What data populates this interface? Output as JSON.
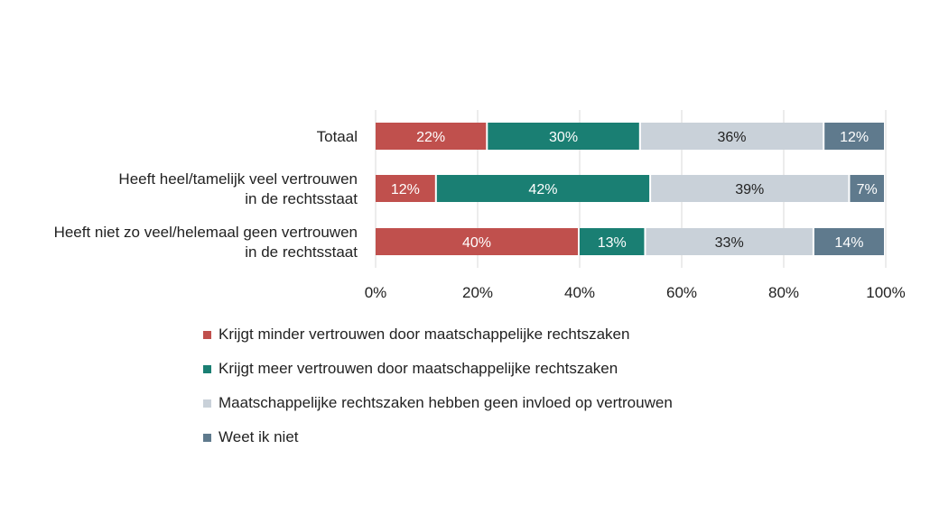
{
  "chart_data": {
    "type": "bar",
    "orientation": "horizontal",
    "stacked": true,
    "normalized": true,
    "categories": [
      [
        "Totaal"
      ],
      [
        "Heeft heel/tamelijk veel vertrouwen",
        "in de rechtsstaat"
      ],
      [
        "Heeft niet zo veel/helemaal geen vertrouwen",
        "in de rechtsstaat"
      ]
    ],
    "series": [
      {
        "name": "Krijgt minder vertrouwen door maatschappelijke rechtszaken",
        "color": "#c0504d",
        "label_color": "#ffffff",
        "values": [
          22,
          12,
          40
        ]
      },
      {
        "name": "Krijgt meer vertrouwen door maatschappelijke rechtszaken",
        "color": "#1a7f73",
        "label_color": "#ffffff",
        "values": [
          30,
          42,
          13
        ]
      },
      {
        "name": "Maatschappelijke rechtszaken hebben geen invloed op vertrouwen",
        "color": "#c9d1d9",
        "label_color": "#222222",
        "values": [
          36,
          39,
          33
        ]
      },
      {
        "name": "Weet ik niet",
        "color": "#5f7a8d",
        "label_color": "#ffffff",
        "values": [
          12,
          7,
          14
        ]
      }
    ],
    "data_labels": [
      [
        "22%",
        "30%",
        "36%",
        "12%"
      ],
      [
        "12%",
        "42%",
        "39%",
        "7%"
      ],
      [
        "40%",
        "13%",
        "33%",
        "14%"
      ]
    ],
    "xlim": [
      0,
      100
    ],
    "xticks": [
      0,
      20,
      40,
      60,
      80,
      100
    ],
    "xtick_labels": [
      "0%",
      "20%",
      "40%",
      "60%",
      "80%",
      "100%"
    ],
    "grid": "vertical",
    "legend_position": "bottom",
    "title": "",
    "xlabel": "",
    "ylabel": ""
  }
}
